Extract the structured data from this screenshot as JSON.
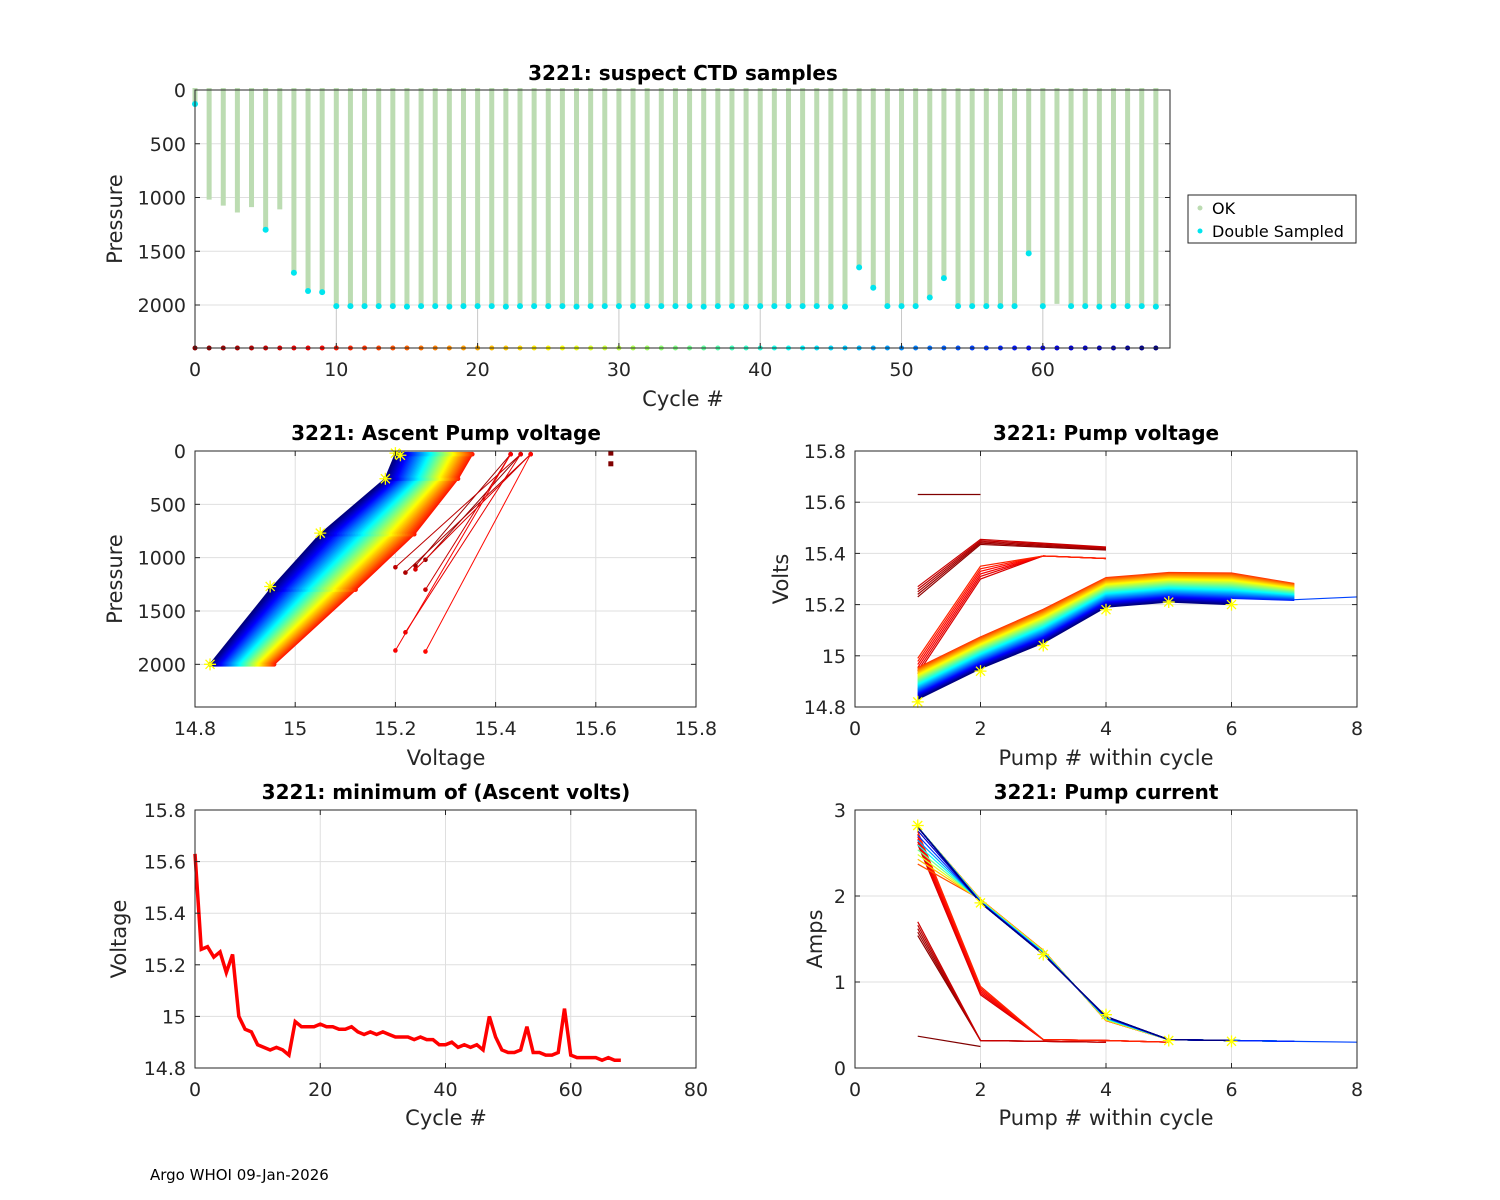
{
  "footer": "Argo WHOI 09-Jan-2026",
  "chart_data": [
    {
      "id": "suspect",
      "type": "bar",
      "title": "3221: suspect CTD samples",
      "xlabel": "Cycle #",
      "ylabel": "Pressure",
      "xlim": [
        0,
        69
      ],
      "ylim": [
        0,
        2400
      ],
      "y_reversed": true,
      "xticks": [
        0,
        10,
        20,
        30,
        40,
        50,
        60
      ],
      "yticks": [
        0,
        500,
        1000,
        1500,
        2000
      ],
      "legend": {
        "position": "right",
        "entries": [
          {
            "label": "OK",
            "color": "#bcdcb2"
          },
          {
            "label": "Double Sampled",
            "color": "#00e5ee"
          }
        ]
      },
      "ok_color": "#bcdcb2",
      "double_color": "#00e5ee",
      "cycles": [
        0,
        1,
        2,
        3,
        4,
        5,
        6,
        7,
        8,
        9,
        10,
        11,
        12,
        13,
        14,
        15,
        16,
        17,
        18,
        19,
        20,
        21,
        22,
        23,
        24,
        25,
        26,
        27,
        28,
        29,
        30,
        31,
        32,
        33,
        34,
        35,
        36,
        37,
        38,
        39,
        40,
        41,
        42,
        43,
        44,
        45,
        46,
        47,
        48,
        49,
        50,
        51,
        52,
        53,
        54,
        55,
        56,
        57,
        58,
        59,
        60,
        61,
        62,
        63,
        64,
        65,
        66,
        67,
        68
      ],
      "max_pressure": [
        130,
        1020,
        1075,
        1140,
        1090,
        1300,
        1110,
        1700,
        1870,
        1880,
        2010,
        2010,
        2010,
        2010,
        2010,
        2015,
        2010,
        2010,
        2015,
        2010,
        2010,
        2010,
        2015,
        2010,
        2010,
        2010,
        2010,
        2015,
        2010,
        2010,
        2010,
        2010,
        2010,
        2010,
        2010,
        2010,
        2015,
        2010,
        2010,
        2015,
        2010,
        2010,
        2010,
        2010,
        2010,
        2015,
        2015,
        1650,
        1840,
        2010,
        2010,
        2010,
        1930,
        1750,
        2010,
        2010,
        2010,
        2010,
        2010,
        1520,
        2010,
        1990,
        2010,
        2010,
        2015,
        2010,
        2010,
        2010,
        2015
      ],
      "double_sampled": [
        true,
        false,
        false,
        false,
        false,
        true,
        false,
        true,
        true,
        true,
        true,
        true,
        true,
        true,
        true,
        true,
        true,
        true,
        true,
        true,
        true,
        true,
        true,
        true,
        true,
        true,
        true,
        true,
        true,
        true,
        true,
        true,
        true,
        true,
        true,
        true,
        true,
        true,
        true,
        true,
        true,
        true,
        true,
        true,
        true,
        true,
        true,
        true,
        true,
        true,
        true,
        true,
        true,
        true,
        true,
        true,
        true,
        true,
        true,
        true,
        true,
        false,
        true,
        true,
        true,
        true,
        true,
        true,
        true
      ],
      "cycle_marker_pressure": 2400
    },
    {
      "id": "ascent",
      "type": "line",
      "title": "3221: Ascent Pump voltage",
      "xlabel": "Voltage",
      "ylabel": "Pressure",
      "xlim": [
        14.8,
        15.8
      ],
      "ylim": [
        0,
        2400
      ],
      "y_reversed": true,
      "xticks": [
        14.8,
        15,
        15.2,
        15.4,
        15.6,
        15.8
      ],
      "xtick_labels": [
        "14.8",
        "15",
        "15.2",
        "15.4",
        "15.6",
        "15.8"
      ],
      "yticks": [
        0,
        500,
        1000,
        1500,
        2000
      ],
      "note": "one line per cycle, colored by cycle (jet colormap); yellow stars mark the latest cycle",
      "latest_cycle_points": [
        [
          14.83,
          2000
        ],
        [
          14.95,
          1270
        ],
        [
          15.05,
          770
        ],
        [
          15.18,
          260
        ],
        [
          15.2,
          20
        ],
        [
          15.21,
          40
        ]
      ],
      "outlier_points": [
        [
          15.63,
          20
        ],
        [
          15.63,
          120
        ]
      ]
    },
    {
      "id": "pumpv",
      "type": "line",
      "title": "3221: Pump voltage",
      "xlabel": "Pump # within cycle",
      "ylabel": "Volts",
      "xlim": [
        0,
        8
      ],
      "ylim": [
        14.8,
        15.8
      ],
      "xticks": [
        0,
        2,
        4,
        6,
        8
      ],
      "yticks": [
        14.8,
        15,
        15.2,
        15.4,
        15.6,
        15.8
      ],
      "ytick_labels": [
        "14.8",
        "15",
        "15.2",
        "15.4",
        "15.6",
        "15.8"
      ],
      "latest_cycle": [
        14.82,
        14.94,
        15.04,
        15.18,
        15.21,
        15.2
      ]
    },
    {
      "id": "minv",
      "type": "line",
      "title": "3221: minimum of (Ascent volts)",
      "xlabel": "Cycle #",
      "ylabel": "Voltage",
      "xlim": [
        0,
        80
      ],
      "ylim": [
        14.8,
        15.8
      ],
      "xticks": [
        0,
        20,
        40,
        60,
        80
      ],
      "yticks": [
        14.8,
        15,
        15.2,
        15.4,
        15.6,
        15.8
      ],
      "ytick_labels": [
        "14.8",
        "15",
        "15.2",
        "15.4",
        "15.6",
        "15.8"
      ],
      "color": "#ff0000",
      "x": [
        0,
        1,
        2,
        3,
        4,
        5,
        6,
        7,
        8,
        9,
        10,
        11,
        12,
        13,
        14,
        15,
        16,
        17,
        18,
        19,
        20,
        21,
        22,
        23,
        24,
        25,
        26,
        27,
        28,
        29,
        30,
        31,
        32,
        33,
        34,
        35,
        36,
        37,
        38,
        39,
        40,
        41,
        42,
        43,
        44,
        45,
        46,
        47,
        48,
        49,
        50,
        51,
        52,
        53,
        54,
        55,
        56,
        57,
        58,
        59,
        60,
        61,
        62,
        63,
        64,
        65,
        66,
        67,
        68
      ],
      "y": [
        15.63,
        15.26,
        15.27,
        15.23,
        15.25,
        15.17,
        15.24,
        15.0,
        14.95,
        14.94,
        14.89,
        14.88,
        14.87,
        14.88,
        14.87,
        14.85,
        14.98,
        14.96,
        14.96,
        14.96,
        14.97,
        14.96,
        14.96,
        14.95,
        14.95,
        14.96,
        14.94,
        14.93,
        14.94,
        14.93,
        14.94,
        14.93,
        14.92,
        14.92,
        14.92,
        14.91,
        14.92,
        14.91,
        14.91,
        14.89,
        14.89,
        14.9,
        14.88,
        14.89,
        14.88,
        14.89,
        14.87,
        15.0,
        14.92,
        14.87,
        14.86,
        14.86,
        14.87,
        14.96,
        14.86,
        14.86,
        14.85,
        14.85,
        14.86,
        15.03,
        14.85,
        14.84,
        14.84,
        14.84,
        14.84,
        14.83,
        14.84,
        14.83,
        14.83
      ]
    },
    {
      "id": "pumpi",
      "type": "line",
      "title": "3221: Pump current",
      "xlabel": "Pump # within cycle",
      "ylabel": "Amps",
      "xlim": [
        0,
        8
      ],
      "ylim": [
        0,
        3
      ],
      "xticks": [
        0,
        2,
        4,
        6,
        8
      ],
      "yticks": [
        0,
        1,
        2,
        3
      ],
      "latest_cycle": [
        2.82,
        1.92,
        1.32,
        0.62,
        0.32,
        0.31
      ]
    }
  ]
}
